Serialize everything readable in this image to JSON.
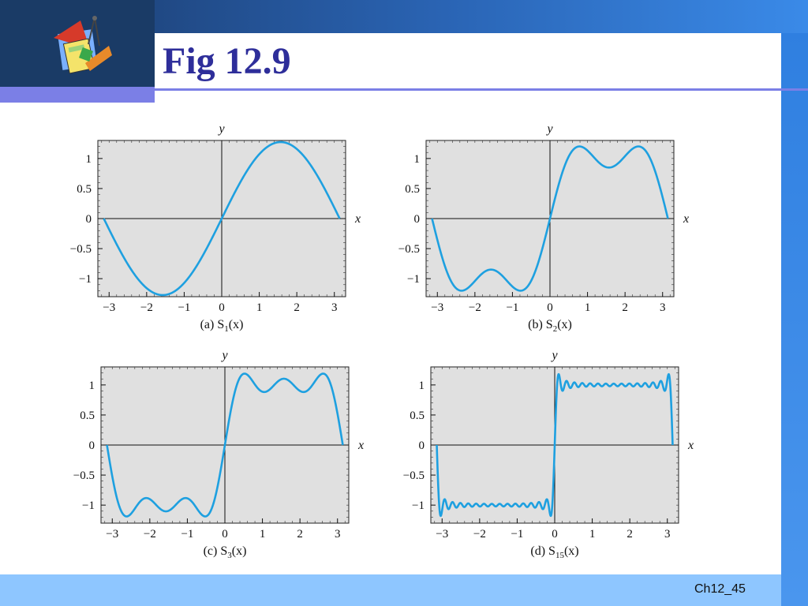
{
  "slide": {
    "title": "Fig 12.9",
    "footer": "Ch12_45"
  },
  "colors": {
    "curve": "#1ea0e0",
    "plot_background": "#e0e0e0",
    "title": "#2e2e9a"
  },
  "chart_data": [
    {
      "type": "line",
      "caption_prefix": "(a) S",
      "caption_sub": "1",
      "caption_suffix": "(x)",
      "xlabel": "x",
      "ylabel": "y",
      "terms": 1,
      "xlim": [
        -3.3,
        3.3
      ],
      "ylim": [
        -1.3,
        1.3
      ],
      "xticks": [
        "−3",
        "−2",
        "−1",
        "0",
        "1",
        "2",
        "3"
      ],
      "yticks": [
        "1",
        "0.5",
        "0",
        "−0.5",
        "−1"
      ],
      "grid": false
    },
    {
      "type": "line",
      "caption_prefix": "(b) S",
      "caption_sub": "2",
      "caption_suffix": "(x)",
      "xlabel": "x",
      "ylabel": "y",
      "terms": 2,
      "xlim": [
        -3.3,
        3.3
      ],
      "ylim": [
        -1.3,
        1.3
      ],
      "xticks": [
        "−3",
        "−2",
        "−1",
        "0",
        "1",
        "2",
        "3"
      ],
      "yticks": [
        "1",
        "0.5",
        "0",
        "−0.5",
        "−1"
      ],
      "grid": false
    },
    {
      "type": "line",
      "caption_prefix": "(c) S",
      "caption_sub": "3",
      "caption_suffix": "(x)",
      "xlabel": "x",
      "ylabel": "y",
      "terms": 3,
      "xlim": [
        -3.3,
        3.3
      ],
      "ylim": [
        -1.3,
        1.3
      ],
      "xticks": [
        "−3",
        "−2",
        "−1",
        "0",
        "1",
        "2",
        "3"
      ],
      "yticks": [
        "1",
        "0.5",
        "0",
        "−0.5",
        "−1"
      ],
      "grid": false
    },
    {
      "type": "line",
      "caption_prefix": "(d) S",
      "caption_sub": "15",
      "caption_suffix": "(x)",
      "xlabel": "x",
      "ylabel": "y",
      "terms": 15,
      "xlim": [
        -3.3,
        3.3
      ],
      "ylim": [
        -1.3,
        1.3
      ],
      "xticks": [
        "−3",
        "−2",
        "−1",
        "0",
        "1",
        "2",
        "3"
      ],
      "yticks": [
        "1",
        "0.5",
        "0",
        "−0.5",
        "−1"
      ],
      "grid": false
    }
  ]
}
